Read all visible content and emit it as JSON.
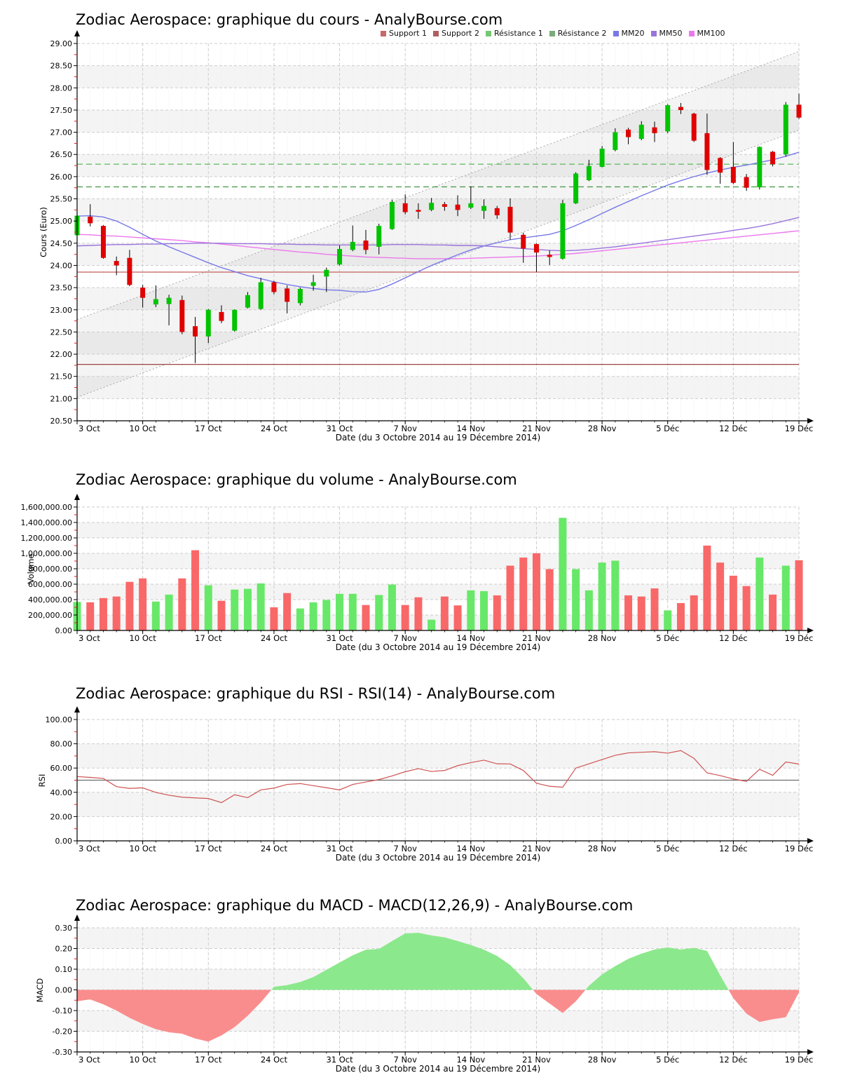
{
  "x_axis": {
    "title": "Date (du 3 Octobre 2014 au 19 Décembre 2014)",
    "tick_labels": [
      "3 Oct",
      "10 Oct",
      "17 Oct",
      "24 Oct",
      "31 Oct",
      "7 Nov",
      "14 Nov",
      "21 Nov",
      "28 Nov",
      "5 Déc",
      "12 Déc",
      "19 Déc"
    ],
    "tick_days": [
      1,
      6,
      11,
      16,
      21,
      26,
      31,
      36,
      41,
      46,
      51,
      56
    ],
    "num_days": 56
  },
  "chart_data": [
    {
      "type": "candlestick",
      "title": "Zodiac Aerospace: graphique du cours - AnalyBourse.com",
      "ylabel": "Cours (Euro)",
      "ylim": [
        20.5,
        29.0
      ],
      "ystep": 0.5,
      "yticks": [
        "29.00",
        "28.50",
        "28.00",
        "27.50",
        "27.00",
        "26.50",
        "26.00",
        "25.50",
        "25.00",
        "24.50",
        "24.00",
        "23.50",
        "23.00",
        "22.50",
        "22.00",
        "21.50",
        "21.00",
        "20.50"
      ],
      "stripe_parity": 1,
      "legend": [
        {
          "label": "Support 1",
          "color": "#c66a6a"
        },
        {
          "label": "Support 2",
          "color": "#b05f5f"
        },
        {
          "label": "Résistance 1",
          "color": "#74c874"
        },
        {
          "label": "Résistance 2",
          "color": "#7cab7c"
        },
        {
          "label": "MM20",
          "color": "#7878ea"
        },
        {
          "label": "MM50",
          "color": "#9a74dc"
        },
        {
          "label": "MM100",
          "color": "#ec78ec"
        }
      ],
      "levels": [
        {
          "name": "support-1",
          "value": 23.85,
          "color": "#c25e5e",
          "style": "solid"
        },
        {
          "name": "support-2",
          "value": 21.77,
          "color": "#a04444",
          "style": "solid"
        },
        {
          "name": "resistance-1",
          "value": 26.28,
          "color": "#5cb85c",
          "style": "dashed"
        },
        {
          "name": "resistance-2",
          "value": 25.77,
          "color": "#4d9e4d",
          "style": "dashed"
        }
      ],
      "channel": {
        "upper_start": 22.78,
        "upper_end": 28.82,
        "lower_start": 21.03,
        "lower_end": 27.05
      },
      "candles": [
        [
          24.68,
          25.2,
          24.66,
          25.12
        ],
        [
          25.1,
          25.38,
          24.88,
          24.95
        ],
        [
          24.89,
          24.91,
          24.15,
          24.17
        ],
        [
          24.1,
          24.2,
          23.78,
          24.0
        ],
        [
          24.17,
          24.35,
          23.53,
          23.56
        ],
        [
          23.5,
          23.56,
          23.05,
          23.27
        ],
        [
          23.12,
          23.55,
          23.06,
          23.24
        ],
        [
          23.13,
          23.34,
          22.65,
          23.27
        ],
        [
          23.22,
          23.32,
          22.45,
          22.5
        ],
        [
          22.63,
          22.84,
          21.8,
          22.4
        ],
        [
          22.4,
          23.02,
          22.25,
          23.0
        ],
        [
          22.95,
          23.1,
          22.7,
          22.75
        ],
        [
          22.53,
          23.01,
          22.51,
          23.0
        ],
        [
          23.05,
          23.4,
          23.03,
          23.33
        ],
        [
          23.02,
          23.72,
          23.0,
          23.62
        ],
        [
          23.62,
          23.65,
          23.35,
          23.4
        ],
        [
          23.48,
          23.55,
          22.92,
          23.18
        ],
        [
          23.15,
          23.5,
          23.1,
          23.47
        ],
        [
          23.54,
          23.79,
          23.43,
          23.62
        ],
        [
          23.75,
          23.95,
          23.4,
          23.9
        ],
        [
          24.02,
          24.45,
          24.0,
          24.37
        ],
        [
          24.35,
          24.9,
          24.32,
          24.53
        ],
        [
          24.56,
          24.8,
          24.25,
          24.35
        ],
        [
          24.42,
          24.94,
          24.25,
          24.89
        ],
        [
          24.82,
          25.48,
          24.8,
          25.43
        ],
        [
          25.4,
          25.6,
          25.15,
          25.2
        ],
        [
          25.25,
          25.4,
          25.05,
          25.21
        ],
        [
          25.25,
          25.52,
          25.22,
          25.41
        ],
        [
          25.38,
          25.43,
          25.23,
          25.32
        ],
        [
          25.37,
          25.58,
          25.11,
          25.25
        ],
        [
          25.3,
          25.78,
          25.27,
          25.4
        ],
        [
          25.23,
          25.49,
          25.05,
          25.34
        ],
        [
          25.29,
          25.34,
          25.05,
          25.13
        ],
        [
          25.32,
          25.51,
          24.58,
          24.74
        ],
        [
          24.69,
          24.74,
          24.06,
          24.38
        ],
        [
          24.48,
          24.5,
          23.85,
          24.29
        ],
        [
          24.24,
          24.34,
          24.01,
          24.19
        ],
        [
          24.15,
          25.48,
          24.13,
          25.4
        ],
        [
          25.4,
          26.1,
          25.38,
          26.07
        ],
        [
          25.92,
          26.38,
          25.9,
          26.24
        ],
        [
          26.22,
          26.69,
          26.21,
          26.63
        ],
        [
          26.6,
          27.09,
          26.57,
          27.0
        ],
        [
          27.06,
          27.1,
          26.73,
          26.89
        ],
        [
          26.85,
          27.25,
          26.82,
          27.17
        ],
        [
          27.11,
          27.24,
          26.78,
          26.98
        ],
        [
          27.02,
          27.63,
          26.98,
          27.61
        ],
        [
          27.57,
          27.66,
          27.41,
          27.5
        ],
        [
          27.42,
          27.44,
          26.78,
          26.81
        ],
        [
          26.98,
          27.42,
          26.04,
          26.15
        ],
        [
          26.42,
          26.44,
          25.84,
          26.09
        ],
        [
          26.22,
          26.78,
          25.83,
          25.86
        ],
        [
          25.99,
          26.06,
          25.68,
          25.75
        ],
        [
          25.76,
          26.68,
          25.71,
          26.67
        ],
        [
          26.56,
          26.58,
          26.23,
          26.28
        ],
        [
          26.5,
          27.68,
          26.45,
          27.62
        ],
        [
          27.62,
          27.87,
          27.3,
          27.33
        ]
      ],
      "mm20": [
        25.11,
        25.12,
        25.09,
        25.0,
        24.86,
        24.7,
        24.55,
        24.42,
        24.3,
        24.18,
        24.06,
        23.95,
        23.86,
        23.77,
        23.7,
        23.63,
        23.57,
        23.52,
        23.48,
        23.45,
        23.44,
        23.41,
        23.4,
        23.46,
        23.58,
        23.72,
        23.86,
        24.0,
        24.12,
        24.24,
        24.35,
        24.44,
        24.51,
        24.58,
        24.62,
        24.66,
        24.7,
        24.78,
        24.9,
        25.03,
        25.17,
        25.31,
        25.44,
        25.57,
        25.69,
        25.81,
        25.91,
        26.0,
        26.08,
        26.15,
        26.21,
        26.26,
        26.32,
        26.38,
        26.46,
        26.55
      ],
      "mm50": [
        24.44,
        24.45,
        24.46,
        24.47,
        24.47,
        24.48,
        24.48,
        24.49,
        24.49,
        24.5,
        24.5,
        24.5,
        24.49,
        24.49,
        24.49,
        24.48,
        24.48,
        24.47,
        24.47,
        24.46,
        24.46,
        24.46,
        24.46,
        24.46,
        24.47,
        24.47,
        24.47,
        24.46,
        24.46,
        24.45,
        24.45,
        24.44,
        24.42,
        24.4,
        24.38,
        24.36,
        24.34,
        24.33,
        24.34,
        24.36,
        24.39,
        24.42,
        24.46,
        24.5,
        24.54,
        24.58,
        24.62,
        24.66,
        24.7,
        24.74,
        24.79,
        24.83,
        24.88,
        24.94,
        25.01,
        25.08
      ],
      "mm100": [
        24.7,
        24.69,
        24.67,
        24.66,
        24.64,
        24.62,
        24.6,
        24.58,
        24.56,
        24.53,
        24.51,
        24.48,
        24.45,
        24.42,
        24.39,
        24.36,
        24.33,
        24.3,
        24.28,
        24.25,
        24.23,
        24.21,
        24.19,
        24.18,
        24.17,
        24.16,
        24.15,
        24.15,
        24.15,
        24.15,
        24.16,
        24.17,
        24.18,
        24.19,
        24.2,
        24.21,
        24.23,
        24.25,
        24.27,
        24.3,
        24.33,
        24.36,
        24.39,
        24.42,
        24.45,
        24.48,
        24.51,
        24.54,
        24.57,
        24.6,
        24.63,
        24.66,
        24.69,
        24.72,
        24.75,
        24.78
      ],
      "colors": {
        "up": "#00c400",
        "down": "#e00000",
        "wick": "#000000",
        "mm20": "#7878ea",
        "mm50": "#9a74dc",
        "mm100": "#ec78ec",
        "channel_line": "#a8a8a8",
        "channel_fill": "rgba(110,110,110,0.08)"
      }
    },
    {
      "type": "bar",
      "title": "Zodiac Aerospace: graphique du volume - AnalyBourse.com",
      "ylabel": "Volume",
      "ylim": [
        0,
        1600000
      ],
      "ystep": 200000,
      "yticks": [
        "1,600,000.00",
        "1,400,000.00",
        "1,200,000.00",
        "1,000,000.00",
        "800,000.00",
        "600,000.00",
        "400,000.00",
        "200,000.00",
        "0.00"
      ],
      "stripe_parity": 1,
      "values": [
        370000,
        365000,
        420000,
        440000,
        630000,
        675000,
        375000,
        465000,
        675000,
        1040000,
        585000,
        385000,
        530000,
        540000,
        610000,
        300000,
        485000,
        285000,
        365000,
        395000,
        475000,
        475000,
        330000,
        460000,
        595000,
        330000,
        430000,
        140000,
        440000,
        325000,
        520000,
        510000,
        455000,
        840000,
        945000,
        1000000,
        795000,
        1460000,
        795000,
        520000,
        880000,
        905000,
        455000,
        440000,
        545000,
        260000,
        355000,
        455000,
        1100000,
        880000,
        710000,
        575000,
        945000,
        465000,
        840000,
        910000
      ],
      "dirs": [
        "g",
        "r",
        "r",
        "r",
        "r",
        "r",
        "g",
        "g",
        "r",
        "r",
        "g",
        "r",
        "g",
        "g",
        "g",
        "r",
        "r",
        "g",
        "g",
        "g",
        "g",
        "g",
        "r",
        "g",
        "g",
        "r",
        "r",
        "g",
        "r",
        "r",
        "g",
        "g",
        "r",
        "r",
        "r",
        "r",
        "r",
        "g",
        "g",
        "g",
        "g",
        "g",
        "r",
        "r",
        "r",
        "g",
        "r",
        "r",
        "r",
        "r",
        "r",
        "r",
        "g",
        "r",
        "g",
        "r"
      ],
      "colors": {
        "up": "#68e868",
        "down": "#f96868"
      }
    },
    {
      "type": "line",
      "title": "Zodiac Aerospace: graphique du RSI - RSI(14) - AnalyBourse.com",
      "ylabel": "RSI",
      "ylim": [
        0,
        100
      ],
      "ystep": 20,
      "yticks": [
        "100.00",
        "80.00",
        "60.00",
        "40.00",
        "20.00",
        "0.00"
      ],
      "stripe_parity": 1,
      "center_line": 50,
      "values": [
        53,
        52.3,
        51.4,
        44.7,
        43.2,
        43.7,
        39.9,
        37.6,
        36,
        35.4,
        34.9,
        31.5,
        38,
        35.6,
        42,
        43.5,
        46.5,
        47.2,
        45.5,
        43.8,
        42,
        46.5,
        48.5,
        50.5,
        53.5,
        57,
        59.5,
        57.2,
        58,
        62,
        64.5,
        66.5,
        63.5,
        63.4,
        58,
        47.5,
        45,
        44.2,
        60,
        63.5,
        67,
        70.5,
        72.5,
        73,
        73.5,
        72.3,
        74.4,
        68,
        56,
        53.8,
        51,
        49,
        59,
        54,
        65,
        63.3
      ],
      "colors": {
        "line": "#cf5252",
        "center": "#6f6f6f"
      }
    },
    {
      "type": "area",
      "title": "Zodiac Aerospace: graphique du MACD - MACD(12,26,9) - AnalyBourse.com",
      "ylabel": "MACD",
      "ylim": [
        -0.3,
        0.3
      ],
      "ystep": 0.1,
      "yticks": [
        "0.30",
        "0.20",
        "0.10",
        "0.00",
        "-0.10",
        "-0.20",
        "-0.30"
      ],
      "stripe_parity": 0,
      "values": [
        -0.055,
        -0.046,
        -0.07,
        -0.1,
        -0.135,
        -0.165,
        -0.19,
        -0.205,
        -0.212,
        -0.235,
        -0.25,
        -0.22,
        -0.18,
        -0.125,
        -0.06,
        0.015,
        0.023,
        0.038,
        0.062,
        0.097,
        0.132,
        0.167,
        0.194,
        0.198,
        0.236,
        0.273,
        0.276,
        0.263,
        0.254,
        0.236,
        0.217,
        0.194,
        0.164,
        0.12,
        0.056,
        -0.02,
        -0.066,
        -0.112,
        -0.055,
        0.02,
        0.075,
        0.115,
        0.15,
        0.175,
        0.195,
        0.205,
        0.195,
        0.203,
        0.188,
        0.07,
        -0.04,
        -0.115,
        -0.155,
        -0.142,
        -0.132,
        -0.012
      ],
      "colors": {
        "pos": "#8ce88c",
        "neg": "#f98d8d"
      }
    }
  ]
}
